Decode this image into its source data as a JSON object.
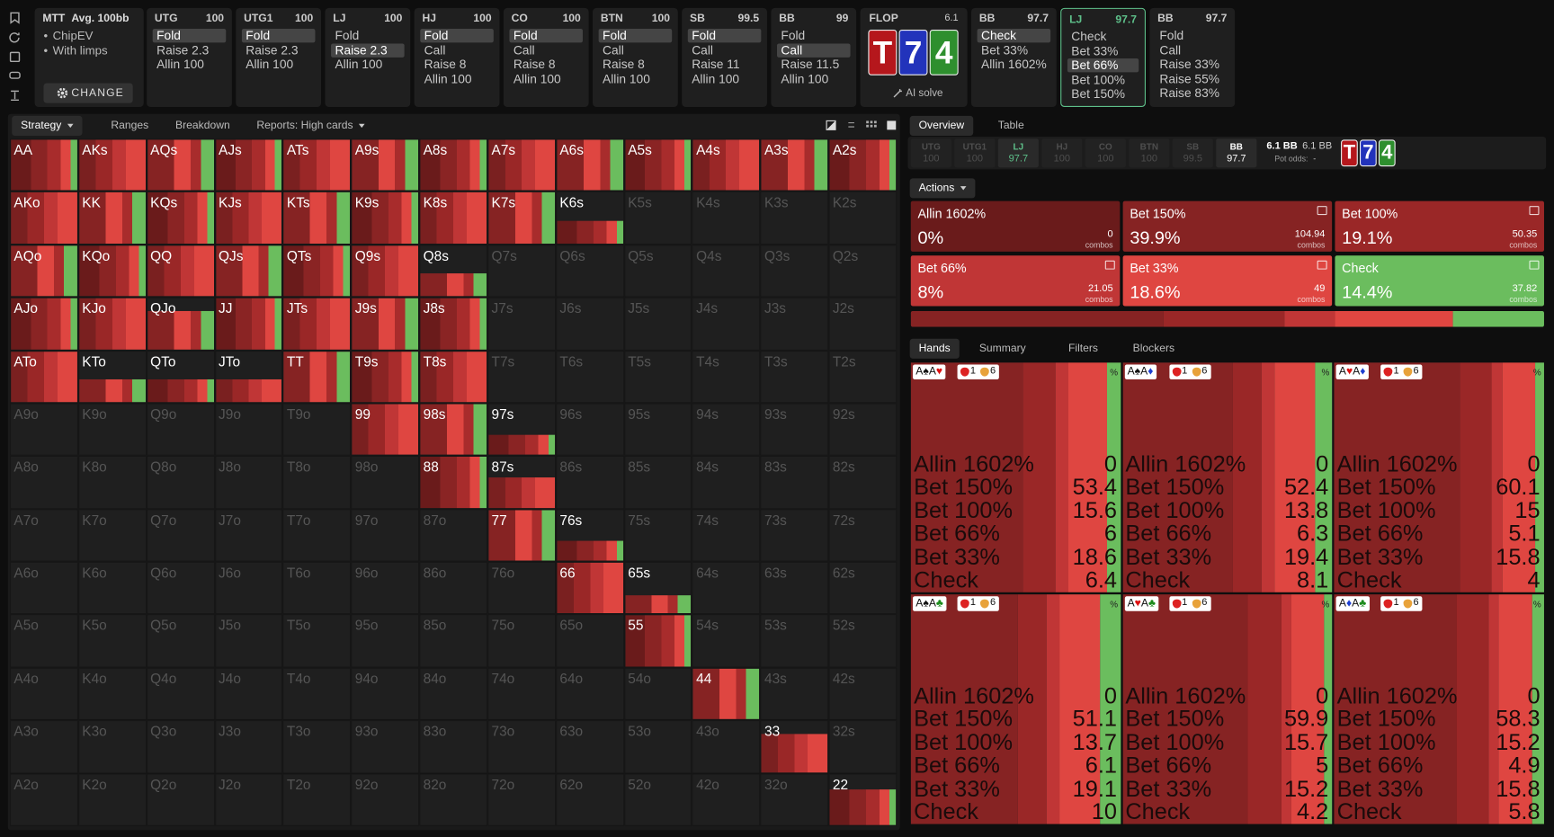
{
  "game": {
    "format": "MTT",
    "depth": "Avg. 100bb",
    "options": [
      "ChipEV",
      "With limps"
    ],
    "button": "CHANGE"
  },
  "positions": [
    {
      "name": "UTG",
      "stack": 100,
      "actions": [
        "Fold",
        "Raise 2.3",
        "Allin 100"
      ],
      "selected": 0
    },
    {
      "name": "UTG1",
      "stack": 100,
      "actions": [
        "Fold",
        "Raise 2.3",
        "Allin 100"
      ],
      "selected": 0
    },
    {
      "name": "LJ",
      "stack": 100,
      "actions": [
        "Fold",
        "Raise 2.3",
        "Allin 100"
      ],
      "selected": 1
    },
    {
      "name": "HJ",
      "stack": 100,
      "actions": [
        "Fold",
        "Call",
        "Raise 8",
        "Allin 100"
      ],
      "selected": 0
    },
    {
      "name": "CO",
      "stack": 100,
      "actions": [
        "Fold",
        "Call",
        "Raise 8",
        "Allin 100"
      ],
      "selected": 0
    },
    {
      "name": "BTN",
      "stack": 100,
      "actions": [
        "Fold",
        "Call",
        "Raise 8",
        "Allin 100"
      ],
      "selected": 0
    },
    {
      "name": "SB",
      "stack": 99.5,
      "actions": [
        "Fold",
        "Call",
        "Raise 11",
        "Allin 100"
      ],
      "selected": 0
    },
    {
      "name": "BB",
      "stack": 99,
      "actions": [
        "Fold",
        "Call",
        "Raise 11.5",
        "Allin 100"
      ],
      "selected": 1
    }
  ],
  "flop": {
    "label": "FLOP",
    "pot": 6.1,
    "cards": [
      {
        "rank": "T",
        "color": "#b5171c"
      },
      {
        "rank": "7",
        "color": "#2233bb"
      },
      {
        "rank": "4",
        "color": "#2e8f2e"
      }
    ],
    "ai": "AI solve"
  },
  "postflop": [
    {
      "name": "BB",
      "stack": 97.7,
      "actions": [
        "Check",
        "Bet 33%",
        "Allin 1602%"
      ],
      "selected": 0,
      "active": false
    },
    {
      "name": "LJ",
      "stack": 97.7,
      "actions": [
        "Check",
        "Bet 33%",
        "Bet 66%",
        "Bet 100%",
        "Bet 150%"
      ],
      "selected": 2,
      "active": true
    },
    {
      "name": "BB",
      "stack": 97.7,
      "actions": [
        "Fold",
        "Call",
        "Raise 33%",
        "Raise 55%",
        "Raise 83%"
      ],
      "selected": -1,
      "active": false
    }
  ],
  "strategy_tabs": [
    "Strategy",
    "Ranges",
    "Breakdown",
    "Reports: High cards"
  ],
  "matrix": [
    [
      "AA",
      "AKs",
      "AQs",
      "AJs",
      "ATs",
      "A9s",
      "A8s",
      "A7s",
      "A6s",
      "A5s",
      "A4s",
      "A3s",
      "A2s"
    ],
    [
      "AKo",
      "KK",
      "KQs",
      "KJs",
      "KTs",
      "K9s",
      "K8s",
      "K7s",
      "K6s",
      "K5s",
      "K4s",
      "K3s",
      "K2s"
    ],
    [
      "AQo",
      "KQo",
      "QQ",
      "QJs",
      "QTs",
      "Q9s",
      "Q8s",
      "Q7s",
      "Q6s",
      "Q5s",
      "Q4s",
      "Q3s",
      "Q2s"
    ],
    [
      "AJo",
      "KJo",
      "QJo",
      "JJ",
      "JTs",
      "J9s",
      "J8s",
      "J7s",
      "J6s",
      "J5s",
      "J4s",
      "J3s",
      "J2s"
    ],
    [
      "ATo",
      "KTo",
      "QTo",
      "JTo",
      "TT",
      "T9s",
      "T8s",
      "T7s",
      "T6s",
      "T5s",
      "T4s",
      "T3s",
      "T2s"
    ],
    [
      "A9o",
      "K9o",
      "Q9o",
      "J9o",
      "T9o",
      "99",
      "98s",
      "97s",
      "96s",
      "95s",
      "94s",
      "93s",
      "92s"
    ],
    [
      "A8o",
      "K8o",
      "Q8o",
      "J8o",
      "T8o",
      "98o",
      "88",
      "87s",
      "86s",
      "85s",
      "84s",
      "83s",
      "82s"
    ],
    [
      "A7o",
      "K7o",
      "Q7o",
      "J7o",
      "T7o",
      "97o",
      "87o",
      "77",
      "76s",
      "75s",
      "74s",
      "73s",
      "72s"
    ],
    [
      "A6o",
      "K6o",
      "Q6o",
      "J6o",
      "T6o",
      "96o",
      "86o",
      "76o",
      "66",
      "65s",
      "64s",
      "63s",
      "62s"
    ],
    [
      "A5o",
      "K5o",
      "Q5o",
      "J5o",
      "T5o",
      "95o",
      "85o",
      "75o",
      "65o",
      "55",
      "54s",
      "53s",
      "52s"
    ],
    [
      "A4o",
      "K4o",
      "Q4o",
      "J4o",
      "T4o",
      "94o",
      "84o",
      "74o",
      "64o",
      "54o",
      "44",
      "43s",
      "42s"
    ],
    [
      "A3o",
      "K3o",
      "Q3o",
      "J3o",
      "T3o",
      "93o",
      "83o",
      "73o",
      "63o",
      "53o",
      "43o",
      "33",
      "32s"
    ],
    [
      "A2o",
      "K2o",
      "Q2o",
      "J2o",
      "T2o",
      "92o",
      "82o",
      "72o",
      "62o",
      "52o",
      "42o",
      "32o",
      "22"
    ]
  ],
  "right_tabs": [
    "Overview",
    "Table"
  ],
  "strip": {
    "positions": [
      {
        "name": "UTG",
        "stack": 100,
        "state": "dim"
      },
      {
        "name": "UTG1",
        "stack": 100,
        "state": "dim"
      },
      {
        "name": "LJ",
        "stack": 97.7,
        "state": "active"
      },
      {
        "name": "HJ",
        "stack": 100,
        "state": "dim"
      },
      {
        "name": "CO",
        "stack": 100,
        "state": "dim"
      },
      {
        "name": "BTN",
        "stack": 100,
        "state": "dim"
      },
      {
        "name": "SB",
        "stack": 99.5,
        "state": "dim"
      },
      {
        "name": "BB",
        "stack": 97.7,
        "state": "current"
      }
    ],
    "pot": "6.1 BB",
    "pot2": "6.1 BB",
    "odds_label": "Pot odds:",
    "odds": "-"
  },
  "actions_menu": "Actions",
  "combos_label": "combos",
  "actions": [
    {
      "name": "Allin 1602%",
      "freq": 0,
      "freq_label": "0%",
      "combos": 0,
      "color": "#6a1b1b"
    },
    {
      "name": "Bet 150%",
      "freq": 39.9,
      "freq_label": "39.9%",
      "combos": 104.94,
      "color": "#862323"
    },
    {
      "name": "Bet 100%",
      "freq": 19.1,
      "freq_label": "19.1%",
      "combos": 50.35,
      "color": "#9a2727"
    },
    {
      "name": "Bet 66%",
      "freq": 8,
      "freq_label": "8%",
      "combos": 21.05,
      "color": "#c03636"
    },
    {
      "name": "Bet 33%",
      "freq": 18.6,
      "freq_label": "18.6%",
      "combos": 49,
      "color": "#df4641"
    },
    {
      "name": "Check",
      "freq": 14.4,
      "freq_label": "14.4%",
      "combos": 37.82,
      "color": "#6bbd5e"
    }
  ],
  "hand_tabs": [
    "Hands",
    "Summary",
    "Filters",
    "Blockers"
  ],
  "percent": "%",
  "hands": [
    {
      "combo": "A♠A♥",
      "tags": [
        1,
        6
      ],
      "values": [
        0,
        53.4,
        15.6,
        6,
        18.6,
        6.4
      ]
    },
    {
      "combo": "A♠A♦",
      "tags": [
        1,
        6
      ],
      "values": [
        0,
        52.4,
        13.8,
        6.3,
        19.4,
        8.1
      ]
    },
    {
      "combo": "A♥A♦",
      "tags": [
        1,
        6
      ],
      "values": [
        0,
        60.1,
        15,
        5.1,
        15.8,
        4
      ]
    },
    {
      "combo": "A♠A♣",
      "tags": [
        1,
        6
      ],
      "values": [
        0,
        51.1,
        13.7,
        6.1,
        19.1,
        10
      ]
    },
    {
      "combo": "A♥A♣",
      "tags": [
        1,
        6
      ],
      "values": [
        0,
        59.9,
        15.7,
        5,
        15.2,
        4.2
      ]
    },
    {
      "combo": "A♦A♣",
      "tags": [
        1,
        6
      ],
      "values": [
        0,
        58.3,
        15.2,
        4.9,
        15.8,
        5.8
      ]
    }
  ]
}
